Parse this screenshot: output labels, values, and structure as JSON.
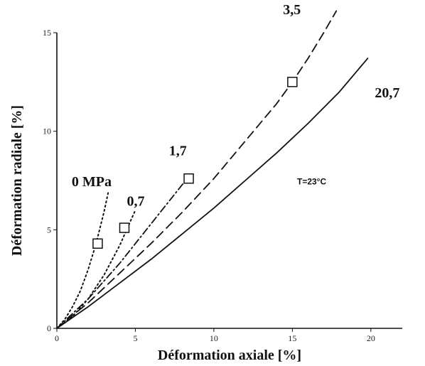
{
  "chart_data": {
    "type": "line",
    "xlabel": "Déformation axiale [%]",
    "ylabel": "Déformation radiale [%]",
    "xlim": [
      0,
      22
    ],
    "ylim": [
      0,
      15
    ],
    "x_ticks": [
      0,
      5,
      10,
      15,
      20
    ],
    "y_ticks": [
      0,
      5,
      10,
      15
    ],
    "annotation": "T=23°C",
    "grid": false,
    "series": [
      {
        "name": "0 MPa",
        "style": "dotted",
        "x": [
          0,
          0.5,
          1.0,
          1.5,
          2.0,
          2.5,
          3.0,
          3.3
        ],
        "y": [
          0,
          0.45,
          1.1,
          1.9,
          3.0,
          4.3,
          5.9,
          7.0
        ],
        "failure_point": [
          2.6,
          4.3
        ]
      },
      {
        "name": "0,7",
        "style": "dotted",
        "x": [
          0,
          1,
          2,
          3,
          4,
          4.5,
          5.0
        ],
        "y": [
          0,
          0.6,
          1.5,
          2.7,
          4.2,
          5.1,
          6.0
        ],
        "failure_point": [
          4.3,
          5.1
        ]
      },
      {
        "name": "1,7",
        "style": "dash-dot",
        "x": [
          0,
          2,
          4,
          6,
          8,
          8.5
        ],
        "y": [
          0,
          1.5,
          3.3,
          5.3,
          7.3,
          7.7
        ],
        "failure_point": [
          8.4,
          7.6
        ]
      },
      {
        "name": "3,5",
        "style": "dashed",
        "x": [
          0,
          2,
          4,
          6,
          8,
          10,
          12,
          14,
          15,
          16,
          17,
          17.8
        ],
        "y": [
          0,
          1.3,
          2.8,
          4.3,
          5.9,
          7.6,
          9.5,
          11.4,
          12.5,
          13.7,
          15.0,
          16.1
        ],
        "failure_point": [
          15.0,
          12.5
        ]
      },
      {
        "name": "20,7",
        "style": "solid",
        "x": [
          0,
          2,
          4,
          6,
          8,
          10,
          12,
          14,
          16,
          18,
          19.8
        ],
        "y": [
          0,
          1.1,
          2.3,
          3.5,
          4.8,
          6.1,
          7.5,
          8.9,
          10.4,
          12.0,
          13.7
        ]
      }
    ]
  }
}
